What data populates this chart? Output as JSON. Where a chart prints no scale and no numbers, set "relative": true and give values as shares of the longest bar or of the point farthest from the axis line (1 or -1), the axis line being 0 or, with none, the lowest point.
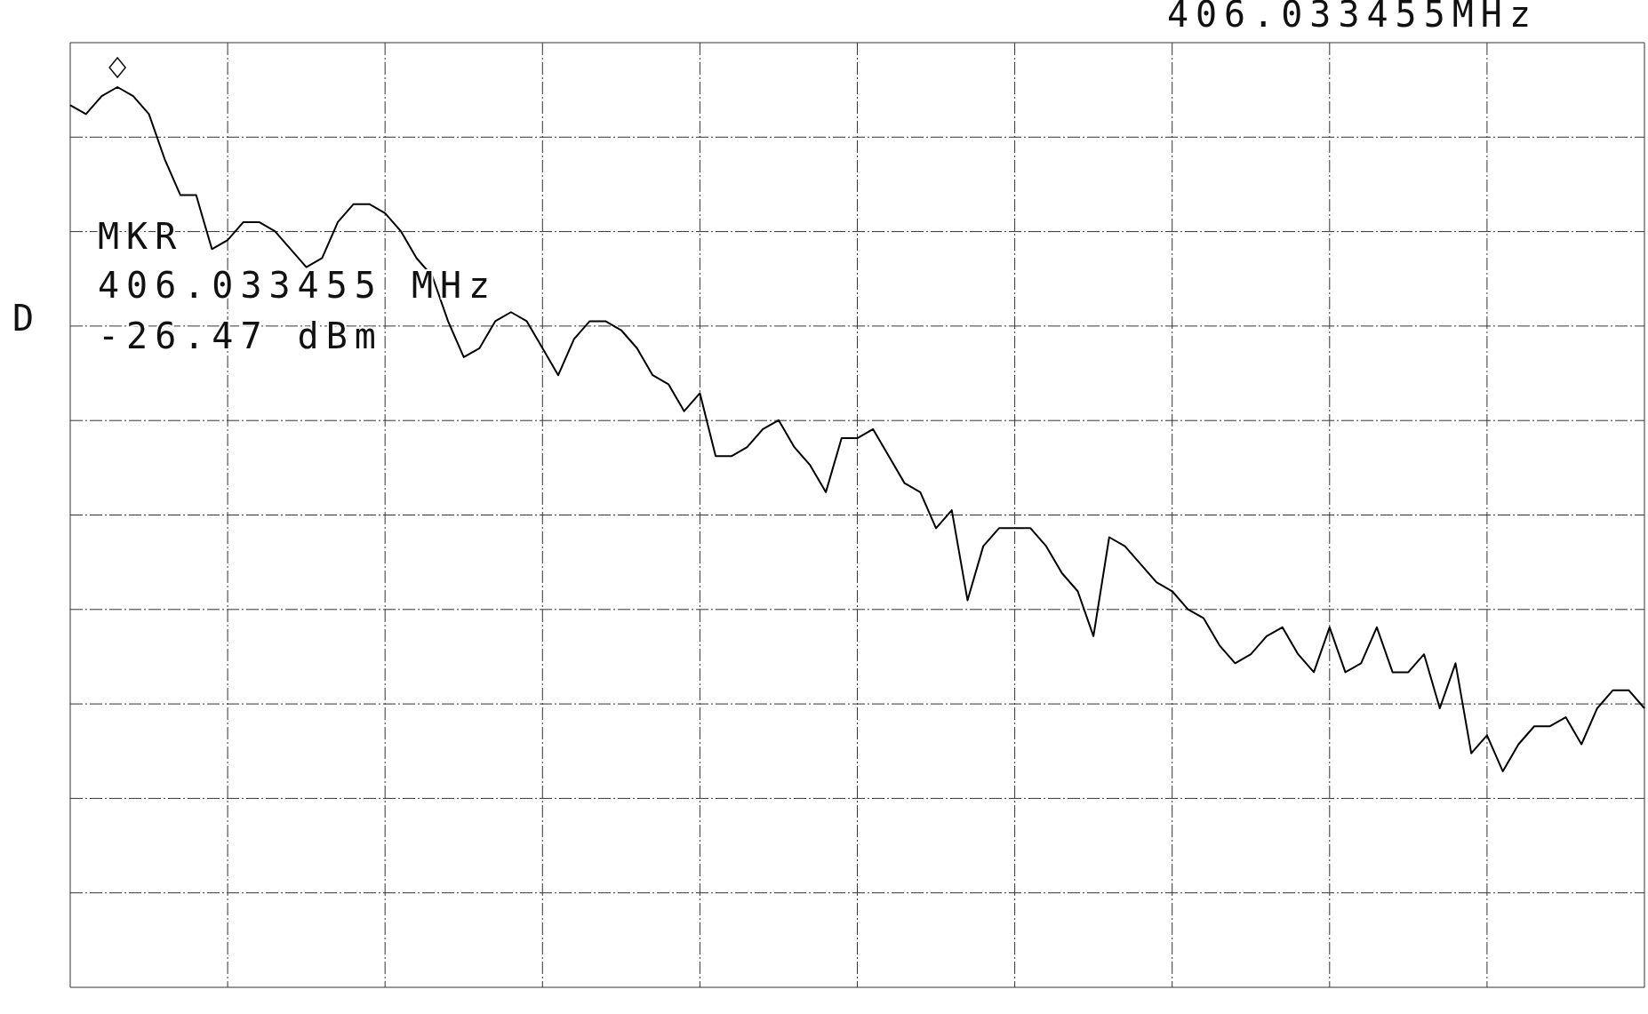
{
  "chart_data": {
    "type": "line",
    "relative": true,
    "grid": true,
    "marker": "none",
    "line_style": "solid",
    "annotations": [
      "406.033455MHz",
      "MKR",
      "406.033455 MHz",
      "-26.47 dBm",
      "D"
    ],
    "categories": [
      null,
      null,
      null,
      null,
      null,
      null,
      null,
      null,
      null,
      null,
      null,
      null,
      null,
      null,
      null,
      null,
      null,
      null,
      null,
      null,
      null,
      null,
      null,
      null,
      null,
      null,
      null,
      null,
      null,
      null,
      null,
      null,
      null,
      null,
      null,
      null,
      null,
      null,
      null,
      null,
      null,
      null,
      null,
      null,
      null,
      null,
      null,
      null,
      null,
      null,
      null,
      null,
      null,
      null,
      null,
      null,
      null,
      null,
      null,
      null,
      null,
      null,
      null,
      null,
      null,
      null,
      null,
      null,
      null,
      null,
      null,
      null,
      null,
      null,
      null,
      null,
      null,
      null,
      null,
      null,
      null,
      null,
      null,
      null,
      null,
      null,
      null,
      null,
      null,
      null,
      null,
      null,
      null,
      null,
      null,
      null,
      null,
      null,
      null,
      null,
      null
    ],
    "series": [
      {
        "color": "#000000",
        "values": [
          0.98,
          0.97,
          0.99,
          1,
          0.99,
          0.97,
          0.92,
          0.88,
          0.88,
          0.82,
          0.83,
          0.85,
          0.85,
          0.84,
          0.82,
          0.8,
          0.81,
          0.85,
          0.87,
          0.87,
          0.86,
          0.84,
          0.81,
          0.79,
          0.74,
          0.7,
          0.71,
          0.74,
          0.75,
          0.74,
          0.71,
          0.68,
          0.72,
          0.74,
          0.74,
          0.73,
          0.71,
          0.68,
          0.67,
          0.64,
          0.66,
          0.59,
          0.59,
          0.6,
          0.62,
          0.63,
          0.6,
          0.58,
          0.55,
          0.61,
          0.61,
          0.62,
          0.59,
          0.56,
          0.55,
          0.51,
          0.53,
          0.43,
          0.49,
          0.51,
          0.51,
          0.51,
          0.49,
          0.46,
          0.44,
          0.39,
          0.5,
          0.49,
          0.47,
          0.45,
          0.44,
          0.42,
          0.41,
          0.38,
          0.36,
          0.37,
          0.39,
          0.4,
          0.37,
          0.35,
          0.4,
          0.35,
          0.36,
          0.4,
          0.35,
          0.35,
          0.37,
          0.31,
          0.36,
          0.26,
          0.28,
          0.24,
          0.27,
          0.29,
          0.29,
          0.3,
          0.27,
          0.31,
          0.33,
          0.33,
          0.31
        ]
      }
    ]
  }
}
